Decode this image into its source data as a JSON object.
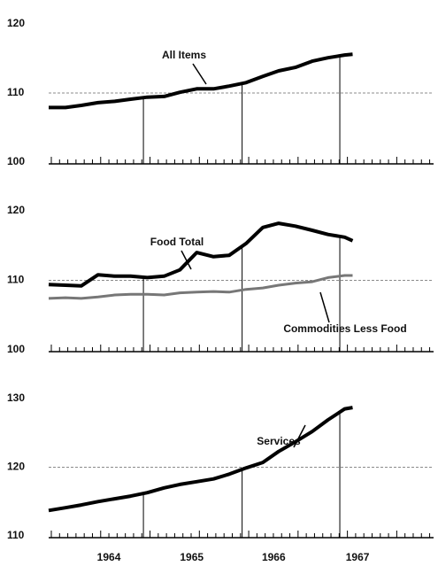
{
  "chart_data": [
    {
      "type": "line",
      "ylim": [
        100,
        120
      ],
      "yticks": [
        100,
        110,
        120
      ],
      "grid": true,
      "xlim": [
        1964,
        1967.9
      ],
      "vlines": [
        1964.96,
        1965.96,
        1966.95
      ],
      "x": [
        1964,
        1964.17,
        1964.33,
        1964.5,
        1964.67,
        1964.83,
        1965,
        1965.17,
        1965.33,
        1965.5,
        1965.67,
        1965.83,
        1966,
        1966.17,
        1966.33,
        1966.5,
        1966.67,
        1966.83,
        1967,
        1967.08
      ],
      "series": [
        {
          "name": "All Items",
          "color": "#000000",
          "values": [
            107.9,
            107.9,
            108.2,
            108.6,
            108.8,
            109.1,
            109.4,
            109.5,
            110.1,
            110.6,
            110.6,
            111.0,
            111.5,
            112.4,
            113.2,
            113.7,
            114.6,
            115.1,
            115.5,
            115.6
          ]
        }
      ]
    },
    {
      "type": "line",
      "ylim": [
        100,
        120
      ],
      "yticks": [
        100,
        110,
        120
      ],
      "grid": true,
      "xlim": [
        1964,
        1967.9
      ],
      "vlines": [
        1964.96,
        1965.96,
        1966.95
      ],
      "x": [
        1964,
        1964.17,
        1964.33,
        1964.5,
        1964.67,
        1964.83,
        1965,
        1965.17,
        1965.33,
        1965.5,
        1965.67,
        1965.83,
        1966,
        1966.17,
        1966.33,
        1966.5,
        1966.67,
        1966.83,
        1967,
        1967.08
      ],
      "series": [
        {
          "name": "Food Total",
          "color": "#000000",
          "values": [
            109.4,
            109.3,
            109.2,
            110.8,
            110.6,
            110.6,
            110.4,
            110.6,
            111.5,
            114.0,
            113.4,
            113.6,
            115.3,
            117.6,
            118.2,
            117.8,
            117.2,
            116.6,
            116.2,
            115.7
          ]
        },
        {
          "name": "Commodities Less Food",
          "color": "#777777",
          "values": [
            107.4,
            107.5,
            107.4,
            107.6,
            107.9,
            108.0,
            108.0,
            107.9,
            108.2,
            108.3,
            108.4,
            108.3,
            108.7,
            108.9,
            109.3,
            109.6,
            109.8,
            110.4,
            110.7,
            110.7
          ]
        }
      ]
    },
    {
      "type": "line",
      "ylim": [
        110,
        130
      ],
      "yticks": [
        110,
        120,
        130
      ],
      "grid": true,
      "xlim": [
        1964,
        1967.9
      ],
      "vlines": [
        1964.96,
        1965.96,
        1966.95
      ],
      "xticks": [
        {
          "value": 1964.61,
          "label": "1964"
        },
        {
          "value": 1965.45,
          "label": "1965"
        },
        {
          "value": 1966.28,
          "label": "1966"
        },
        {
          "value": 1967.13,
          "label": "1967"
        }
      ],
      "x": [
        1964,
        1964.17,
        1964.33,
        1964.5,
        1964.67,
        1964.83,
        1965,
        1965.17,
        1965.33,
        1965.5,
        1965.67,
        1965.83,
        1966,
        1966.17,
        1966.33,
        1966.5,
        1966.67,
        1966.83,
        1967,
        1967.08
      ],
      "series": [
        {
          "name": "Services",
          "color": "#000000",
          "values": [
            113.7,
            114.1,
            114.5,
            115.0,
            115.4,
            115.8,
            116.3,
            117.0,
            117.5,
            117.9,
            118.3,
            119.0,
            119.9,
            120.7,
            122.3,
            123.7,
            125.2,
            126.9,
            128.5,
            128.7
          ]
        }
      ]
    }
  ]
}
